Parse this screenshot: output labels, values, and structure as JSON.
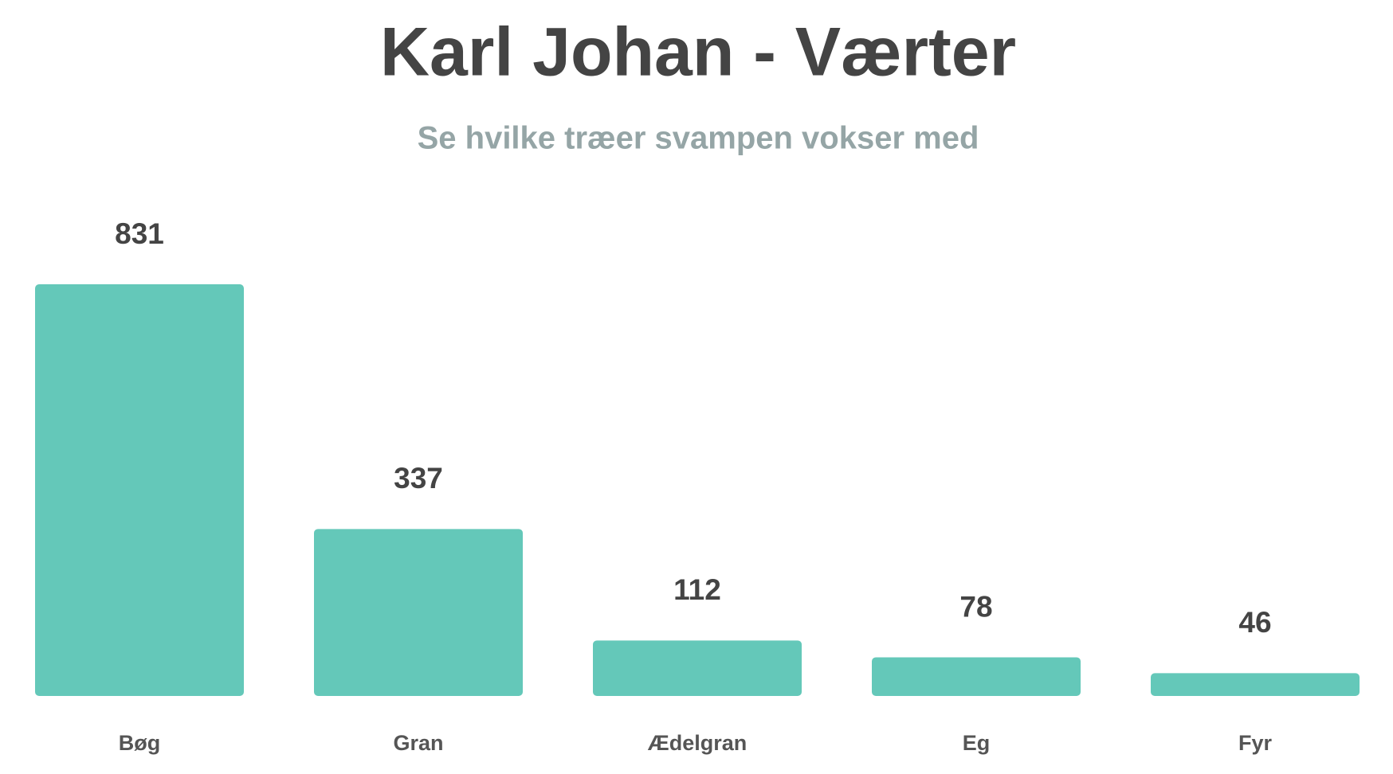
{
  "chart_data": {
    "type": "bar",
    "title": "Karl Johan - Værter",
    "subtitle": "Se hvilke træer svampen vokser med",
    "categories": [
      "Bøg",
      "Gran",
      "Ædelgran",
      "Eg",
      "Fyr"
    ],
    "values": [
      831,
      337,
      112,
      78,
      46
    ],
    "color": "#64c8b9"
  }
}
